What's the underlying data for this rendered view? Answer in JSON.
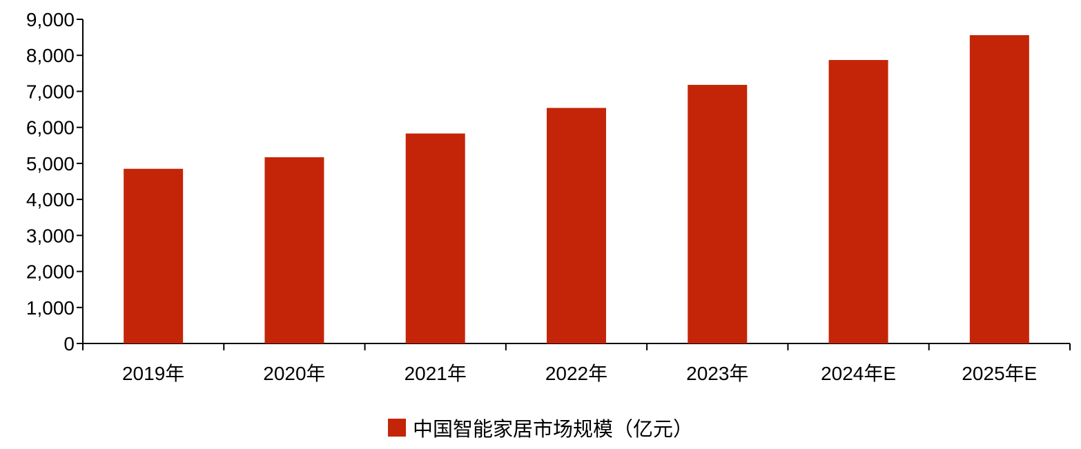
{
  "chart_data": {
    "type": "bar",
    "categories": [
      "2019年",
      "2020年",
      "2021年",
      "2022年",
      "2023年",
      "2024年E",
      "2025年E"
    ],
    "series": [
      {
        "name": "中国智能家居市场规模（亿元）",
        "values": [
          4850,
          5170,
          5830,
          6540,
          7180,
          7870,
          8560
        ],
        "color": "#C42508"
      }
    ],
    "ylim": [
      0,
      9000
    ],
    "yticks": [
      0,
      1000,
      2000,
      3000,
      4000,
      5000,
      6000,
      7000,
      8000,
      9000
    ],
    "ytick_labels": [
      "0",
      "1,000",
      "2,000",
      "3,000",
      "4,000",
      "5,000",
      "6,000",
      "7,000",
      "8,000",
      "9,000"
    ],
    "grid": false,
    "legend": "bottom"
  }
}
